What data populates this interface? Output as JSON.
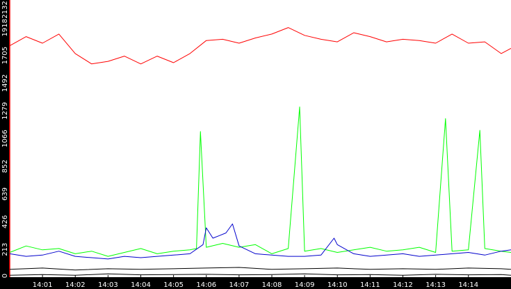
{
  "chart_data": {
    "type": "line",
    "title": "",
    "xlabel": "",
    "ylabel": "",
    "background": "#000000",
    "plot_background": "#ffffff",
    "grid": false,
    "legend": "none",
    "ylim": [
      0,
      2132
    ],
    "y_ticks": [
      "0",
      "213",
      "426",
      "639",
      "852",
      "1066",
      "1279",
      "1492",
      "1705",
      "1918",
      "2132"
    ],
    "x_range_minutes": [
      0,
      15.3
    ],
    "x_ticks": [
      "14:01",
      "14:02",
      "14:03",
      "14:04",
      "14:05",
      "14:06",
      "14:07",
      "14:08",
      "14:09",
      "14:10",
      "14:11",
      "14:12",
      "14:13",
      "14:14"
    ],
    "series": [
      {
        "color": "#ff0000",
        "x": [
          0,
          0.5,
          1,
          1.5,
          2,
          2.5,
          3,
          3.5,
          4,
          4.5,
          5,
          5.5,
          6,
          6.5,
          7,
          7.5,
          8,
          8.5,
          9,
          9.5,
          10,
          10.5,
          11,
          11.5,
          12,
          12.5,
          13,
          13.5,
          14,
          14.5,
          15,
          15.3
        ],
        "y": [
          1780,
          1850,
          1800,
          1870,
          1720,
          1640,
          1660,
          1700,
          1640,
          1700,
          1650,
          1720,
          1820,
          1830,
          1800,
          1840,
          1870,
          1920,
          1860,
          1830,
          1810,
          1880,
          1850,
          1810,
          1830,
          1820,
          1800,
          1870,
          1800,
          1810,
          1720,
          1760
        ]
      },
      {
        "color": "#00ff00",
        "x": [
          0,
          0.5,
          1,
          1.5,
          2,
          2.5,
          3,
          3.5,
          4,
          4.5,
          5,
          5.5,
          5.7,
          5.82,
          6,
          6.5,
          7,
          7.5,
          8,
          8.5,
          8.85,
          9,
          9.5,
          10,
          10.5,
          11,
          11.5,
          12,
          12.5,
          13,
          13.3,
          13.5,
          14,
          14.35,
          14.5,
          15,
          15.3
        ],
        "y": [
          190,
          240,
          210,
          220,
          180,
          200,
          160,
          190,
          220,
          180,
          200,
          210,
          220,
          1120,
          230,
          260,
          230,
          250,
          180,
          220,
          1310,
          200,
          220,
          190,
          210,
          230,
          200,
          210,
          230,
          190,
          1220,
          200,
          210,
          1130,
          220,
          200,
          190
        ]
      },
      {
        "color": "#0000cc",
        "x": [
          0,
          0.5,
          1,
          1.5,
          2,
          2.5,
          3,
          3.5,
          4,
          4.5,
          5,
          5.5,
          5.9,
          6,
          6.2,
          6.4,
          6.6,
          6.8,
          7,
          7.5,
          8,
          8.5,
          9,
          9.5,
          9.9,
          10,
          10.5,
          11,
          11.5,
          12,
          12.5,
          13,
          13.5,
          14,
          14.5,
          15,
          15.3
        ],
        "y": [
          180,
          160,
          170,
          200,
          160,
          150,
          140,
          160,
          150,
          160,
          170,
          180,
          250,
          380,
          300,
          320,
          340,
          410,
          240,
          180,
          170,
          160,
          160,
          170,
          300,
          250,
          180,
          160,
          170,
          180,
          160,
          170,
          180,
          190,
          170,
          200,
          210
        ]
      },
      {
        "color": "#000000",
        "x": [
          0,
          1,
          2,
          3,
          4,
          5,
          6,
          7,
          8,
          9,
          10,
          11,
          12,
          13,
          14,
          15,
          15.3
        ],
        "y": [
          60,
          70,
          55,
          65,
          60,
          65,
          70,
          75,
          60,
          65,
          70,
          60,
          65,
          60,
          70,
          65,
          60
        ]
      },
      {
        "color": "#000000",
        "x": [
          0,
          1,
          2,
          3,
          4,
          5,
          6,
          7,
          8,
          9,
          10,
          11,
          12,
          13,
          14,
          15,
          15.3
        ],
        "y": [
          15,
          20,
          15,
          25,
          18,
          20,
          22,
          18,
          20,
          25,
          18,
          20,
          15,
          22,
          18,
          20,
          15
        ]
      }
    ]
  }
}
